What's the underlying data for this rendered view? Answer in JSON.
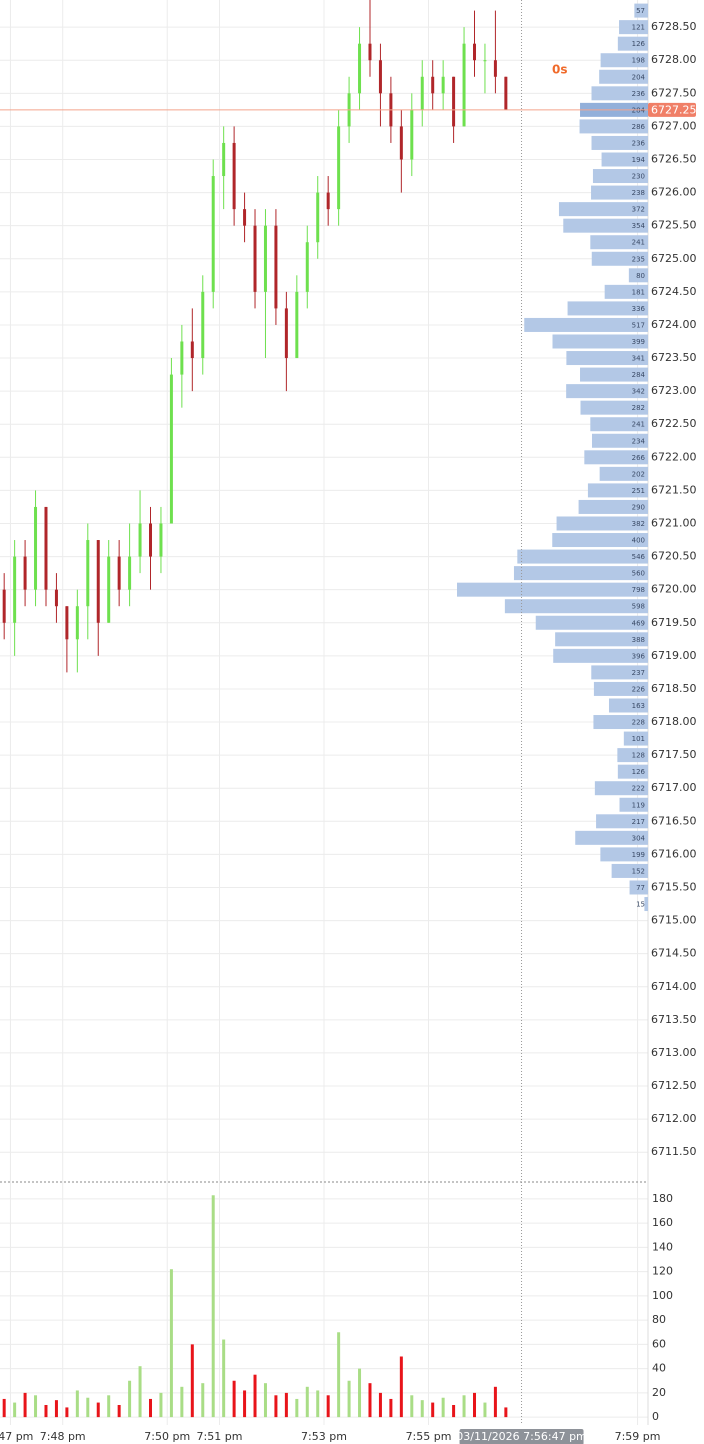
{
  "chart_data": {
    "type": "candlestick",
    "timer": "0s",
    "x": [
      46.88,
      47.08,
      47.28,
      47.48,
      47.68,
      47.88,
      48.08,
      48.28,
      48.48,
      48.68,
      48.88,
      49.08,
      49.28,
      49.48,
      49.68,
      49.88,
      50.08,
      50.28,
      50.48,
      50.68,
      50.88,
      51.08,
      51.28,
      51.48,
      51.68,
      51.88,
      52.08,
      52.28,
      52.48,
      52.68,
      52.88,
      53.08,
      53.28,
      53.48,
      53.68,
      53.88,
      54.08,
      54.28,
      54.48,
      54.68,
      54.88,
      55.08,
      55.28,
      55.48,
      55.68,
      55.88,
      56.08,
      56.28,
      56.48
    ],
    "open": [
      6720.0,
      6719.5,
      6720.5,
      6720.0,
      6721.25,
      6720.0,
      6719.75,
      6719.25,
      6719.75,
      6720.75,
      6719.5,
      6720.5,
      6720.0,
      6720.5,
      6721.0,
      6720.5,
      6721.0,
      6723.25,
      6723.75,
      6723.5,
      6724.5,
      6726.25,
      6726.75,
      6725.75,
      6725.5,
      6724.5,
      6725.5,
      6724.25,
      6723.5,
      6724.5,
      6725.25,
      6726.0,
      6725.75,
      6727.0,
      6727.5,
      6728.25,
      6728.0,
      6727.5,
      6727.0,
      6726.5,
      6727.25,
      6727.75,
      6727.5,
      6727.75,
      6727.0,
      6728.25,
      6728.0,
      6728.0,
      6727.75
    ],
    "high": [
      6720.25,
      6720.75,
      6720.75,
      6721.5,
      6721.25,
      6720.25,
      6719.75,
      6720.0,
      6721.0,
      6720.75,
      6720.75,
      6720.75,
      6721.0,
      6721.5,
      6721.25,
      6721.25,
      6723.5,
      6724.0,
      6724.25,
      6724.75,
      6726.5,
      6727.0,
      6727.0,
      6726.0,
      6725.75,
      6725.75,
      6725.75,
      6724.5,
      6724.75,
      6725.5,
      6726.25,
      6726.25,
      6727.25,
      6727.75,
      6728.5,
      6729.0,
      6728.25,
      6727.75,
      6727.25,
      6727.5,
      6728.0,
      6728.0,
      6728.0,
      6727.75,
      6728.5,
      6728.75,
      6728.25,
      6728.75,
      6727.75
    ],
    "low": [
      6719.25,
      6719.0,
      6719.75,
      6719.75,
      6719.75,
      6719.5,
      6718.75,
      6718.75,
      6719.25,
      6719.0,
      6719.5,
      6719.75,
      6719.75,
      6720.25,
      6720.0,
      6720.25,
      6721.0,
      6722.75,
      6723.0,
      6723.25,
      6724.25,
      6725.75,
      6725.5,
      6725.25,
      6724.25,
      6723.5,
      6724.0,
      6723.0,
      6723.5,
      6724.25,
      6725.0,
      6725.5,
      6725.5,
      6726.75,
      6727.25,
      6727.75,
      6727.0,
      6726.75,
      6726.0,
      6726.25,
      6727.0,
      6727.25,
      6727.25,
      6726.75,
      6727.0,
      6727.75,
      6727.5,
      6727.5,
      6727.25
    ],
    "close": [
      6719.5,
      6720.5,
      6720.0,
      6721.25,
      6720.0,
      6719.75,
      6719.25,
      6719.75,
      6720.75,
      6719.5,
      6720.5,
      6720.0,
      6720.5,
      6721.0,
      6720.5,
      6721.0,
      6723.25,
      6723.75,
      6723.5,
      6724.5,
      6726.25,
      6726.75,
      6725.75,
      6725.5,
      6724.5,
      6725.5,
      6724.25,
      6723.5,
      6724.5,
      6725.25,
      6726.0,
      6725.75,
      6727.0,
      6727.5,
      6728.25,
      6728.0,
      6727.5,
      6727.0,
      6726.5,
      6727.25,
      6727.75,
      6727.5,
      6727.75,
      6727.0,
      6728.25,
      6728.0,
      6728.0,
      6727.75,
      6727.25
    ],
    "volume": [
      15,
      12,
      20,
      18,
      10,
      14,
      8,
      22,
      16,
      12,
      18,
      10,
      30,
      42,
      15,
      20,
      122,
      25,
      60,
      28,
      183,
      64,
      30,
      22,
      35,
      28,
      18,
      20,
      15,
      25,
      22,
      18,
      70,
      30,
      40,
      28,
      20,
      15,
      50,
      18,
      14,
      12,
      16,
      10,
      18,
      20,
      12,
      25,
      8
    ],
    "up_color": "#6ee04e",
    "down_color": "#b0262a",
    "volume_up_color": "#a9dd86",
    "volume_down_color": "#e8141a",
    "xlim": [
      46.8,
      59.2
    ],
    "xticks": [
      {
        "value": 47,
        "label": "7:47 pm"
      },
      {
        "value": 48,
        "label": "7:48 pm"
      },
      {
        "value": 50,
        "label": "7:50 pm"
      },
      {
        "value": 51,
        "label": "7:51 pm"
      },
      {
        "value": 53,
        "label": "7:53 pm"
      },
      {
        "value": 55,
        "label": "7:55 pm"
      },
      {
        "value": 59,
        "label": "7:59 pm"
      }
    ],
    "ylim": [
      6711.08,
      6728.91
    ],
    "yticks": [
      {
        "value": 6711.5,
        "label": "6711.50"
      },
      {
        "value": 6712.0,
        "label": "6712.00"
      },
      {
        "value": 6712.5,
        "label": "6712.50"
      },
      {
        "value": 6713.0,
        "label": "6713.00"
      },
      {
        "value": 6713.5,
        "label": "6713.50"
      },
      {
        "value": 6714.0,
        "label": "6714.00"
      },
      {
        "value": 6714.5,
        "label": "6714.50"
      },
      {
        "value": 6715.0,
        "label": "6715.00"
      },
      {
        "value": 6715.5,
        "label": "6715.50"
      },
      {
        "value": 6716.0,
        "label": "6716.00"
      },
      {
        "value": 6716.5,
        "label": "6716.50"
      },
      {
        "value": 6717.0,
        "label": "6717.00"
      },
      {
        "value": 6717.5,
        "label": "6717.50"
      },
      {
        "value": 6718.0,
        "label": "6718.00"
      },
      {
        "value": 6718.5,
        "label": "6718.50"
      },
      {
        "value": 6719.0,
        "label": "6719.00"
      },
      {
        "value": 6719.5,
        "label": "6719.50"
      },
      {
        "value": 6720.0,
        "label": "6720.00"
      },
      {
        "value": 6720.5,
        "label": "6720.50"
      },
      {
        "value": 6721.0,
        "label": "6721.00"
      },
      {
        "value": 6721.5,
        "label": "6721.50"
      },
      {
        "value": 6722.0,
        "label": "6722.00"
      },
      {
        "value": 6722.5,
        "label": "6722.50"
      },
      {
        "value": 6723.0,
        "label": "6723.00"
      },
      {
        "value": 6723.5,
        "label": "6723.50"
      },
      {
        "value": 6724.0,
        "label": "6724.00"
      },
      {
        "value": 6724.5,
        "label": "6724.50"
      },
      {
        "value": 6725.0,
        "label": "6725.00"
      },
      {
        "value": 6725.5,
        "label": "6725.50"
      },
      {
        "value": 6726.0,
        "label": "6726.00"
      },
      {
        "value": 6726.5,
        "label": "6726.50"
      },
      {
        "value": 6727.0,
        "label": "6727.00"
      },
      {
        "value": 6727.5,
        "label": "6727.50"
      },
      {
        "value": 6728.0,
        "label": "6728.00"
      },
      {
        "value": 6728.5,
        "label": "6728.50"
      }
    ],
    "volume_ylim": [
      -6.5,
      192.3
    ],
    "volume_yticks": [
      0,
      20,
      40,
      60,
      80,
      100,
      120,
      140,
      160,
      180
    ],
    "grid": true,
    "current_price": {
      "value": 6727.25,
      "label": "6727.25"
    },
    "crosshair": {
      "value": 56.78,
      "label": "03/11/2026 7:56:47 pm"
    },
    "volume_profile": {
      "color": "#b3c8e6",
      "highlight_color": "#93b0da",
      "prices": [
        6728.75,
        6728.5,
        6728.25,
        6728.0,
        6727.75,
        6727.5,
        6727.25,
        6727.0,
        6726.75,
        6726.5,
        6726.25,
        6726.0,
        6725.75,
        6725.5,
        6725.25,
        6725.0,
        6724.75,
        6724.5,
        6724.25,
        6724.0,
        6723.75,
        6723.5,
        6723.25,
        6723.0,
        6722.75,
        6722.5,
        6722.25,
        6722.0,
        6721.75,
        6721.5,
        6721.25,
        6721.0,
        6720.75,
        6720.5,
        6720.25,
        6720.0,
        6719.75,
        6719.5,
        6719.25,
        6719.0,
        6718.75,
        6718.5,
        6718.25,
        6718.0,
        6717.75,
        6717.5,
        6717.25,
        6717.0,
        6716.75,
        6716.5,
        6716.25,
        6716.0,
        6715.75,
        6715.5,
        6715.25
      ],
      "values": [
        57,
        121,
        126,
        198,
        204,
        236,
        284,
        286,
        236,
        194,
        230,
        238,
        372,
        354,
        241,
        235,
        80,
        181,
        336,
        517,
        399,
        341,
        284,
        342,
        282,
        241,
        234,
        266,
        202,
        251,
        290,
        382,
        400,
        546,
        560,
        798,
        598,
        469,
        388,
        396,
        237,
        226,
        163,
        228,
        101,
        128,
        126,
        222,
        119,
        217,
        304,
        199,
        152,
        77,
        15
      ]
    }
  }
}
